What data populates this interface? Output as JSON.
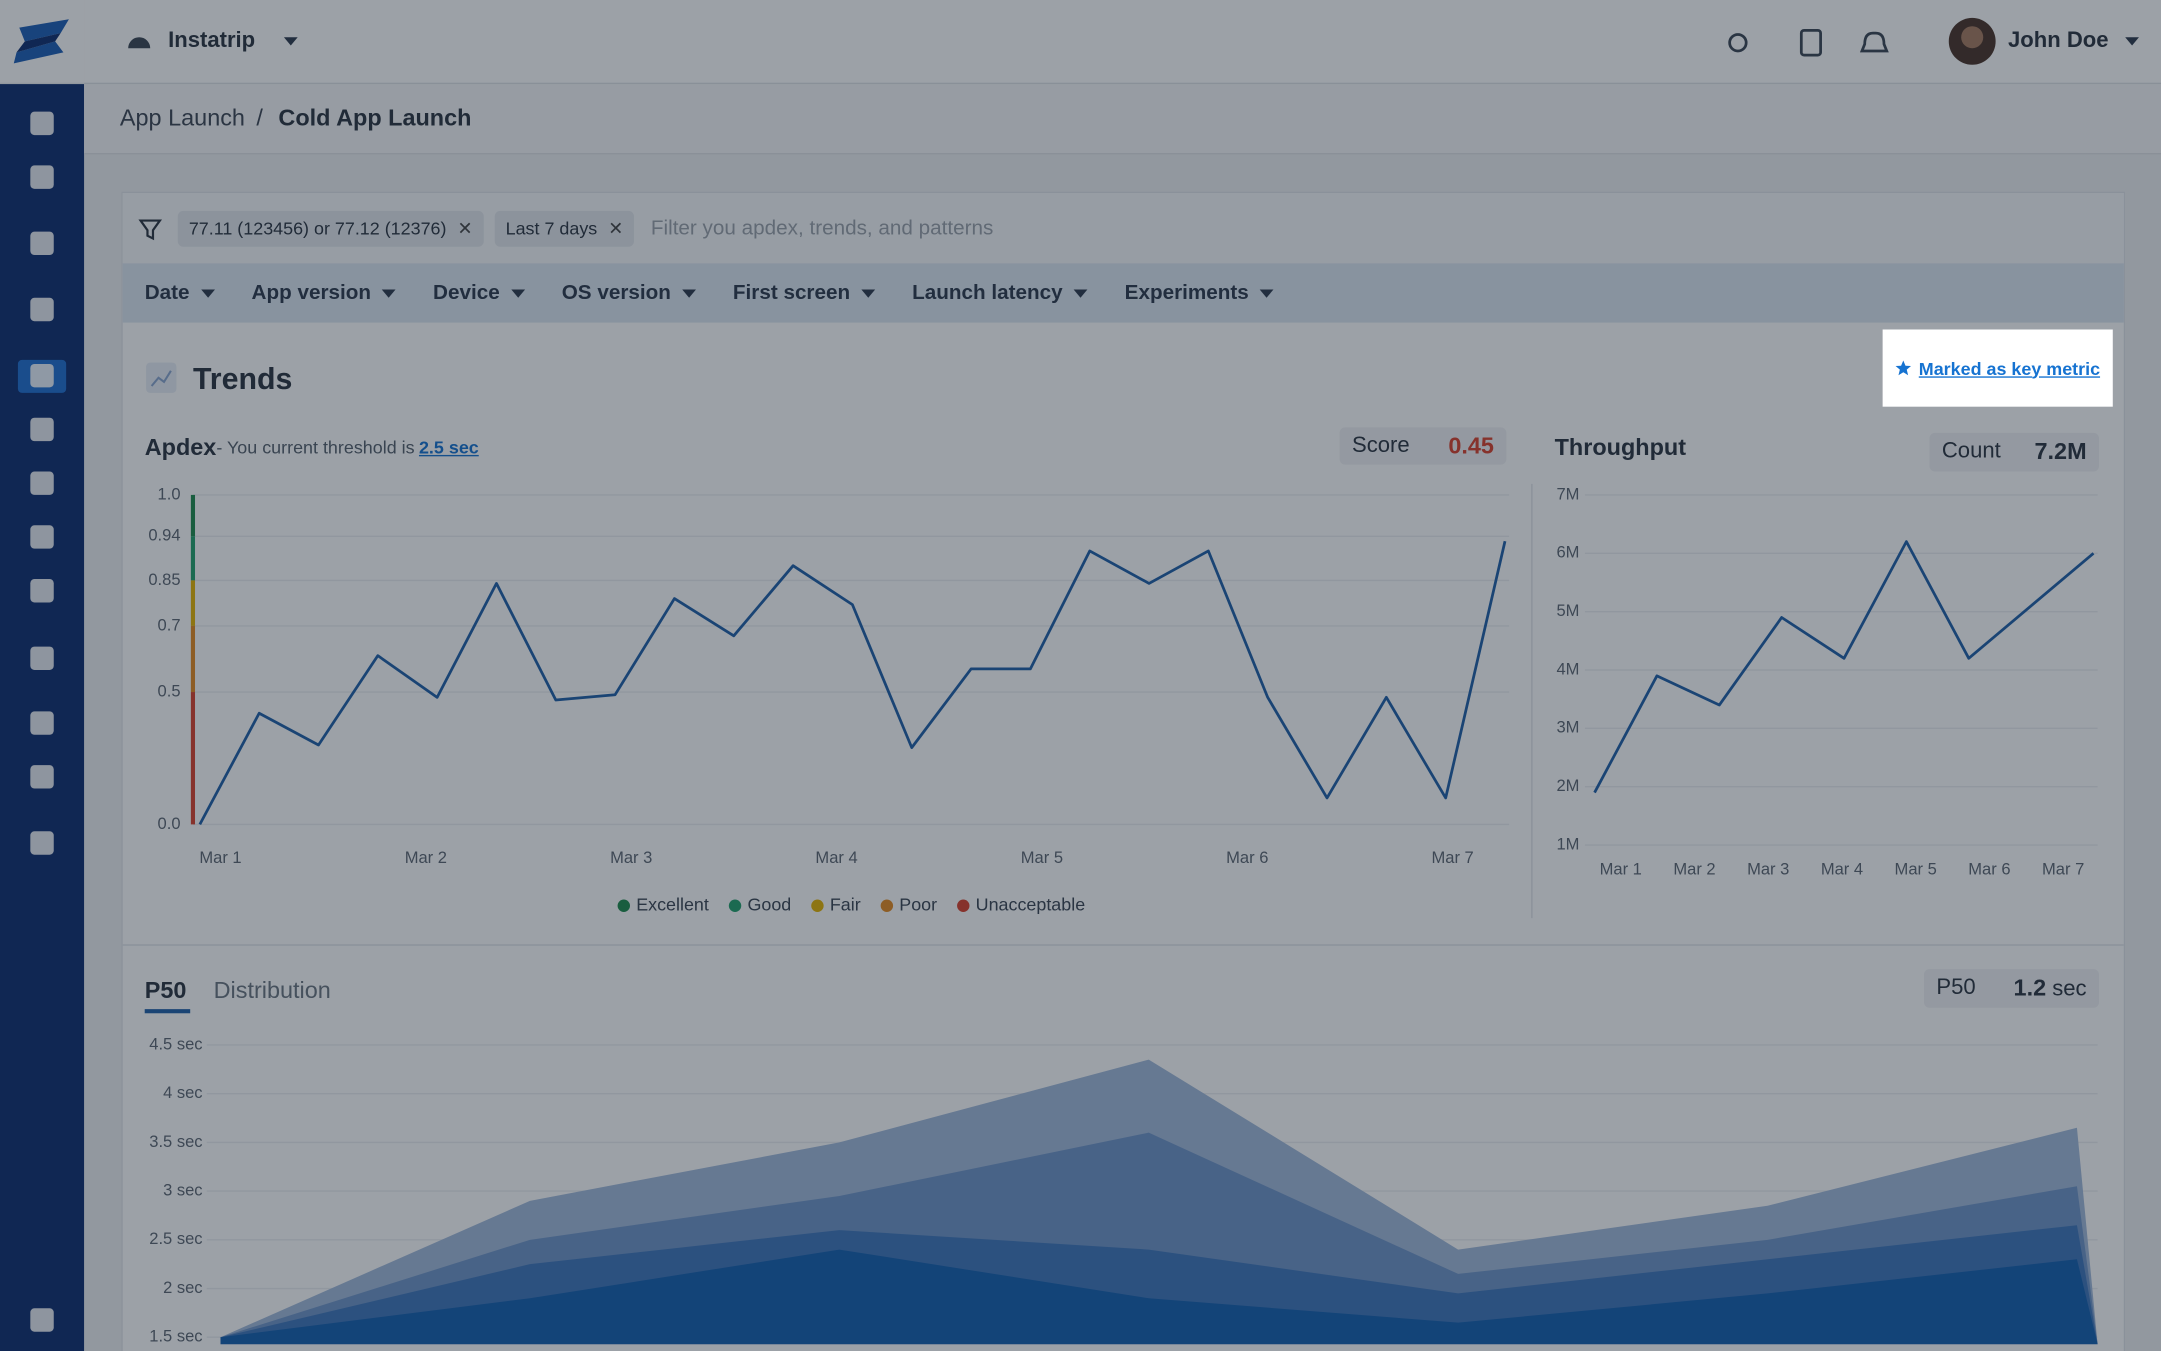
{
  "header": {
    "app_name": "Instatrip",
    "user_name": "John Doe"
  },
  "breadcrumb": {
    "parent": "App Launch",
    "separator": "/",
    "current": "Cold App Launch"
  },
  "filters": {
    "chips": [
      "77.11 (123456) or 77.12 (12376)",
      "Last 7 days"
    ],
    "placeholder": "Filter you apdex, trends, and patterns"
  },
  "filter_menus": [
    "Date",
    "App version",
    "Device",
    "OS version",
    "First screen",
    "Launch latency",
    "Experiments"
  ],
  "trends": {
    "title": "Trends",
    "key_metric_button": "Marked as key metric"
  },
  "chart_data": [
    {
      "type": "line",
      "title": "Apdex",
      "subtitle": "- You current threshold is",
      "threshold_link": "2.5 sec",
      "stat_label": "Score",
      "stat_value": 0.45,
      "color": "#1f5fa8",
      "ylim": [
        0,
        1
      ],
      "yticks": [
        {
          "value": 1,
          "label": "1.0"
        },
        0.94,
        0.85,
        0.7,
        0.5,
        {
          "value": 0,
          "label": "0.0"
        }
      ],
      "x_labels": [
        "Mar 1",
        "Mar 2",
        "Mar 3",
        "Mar 4",
        "Mar 5",
        "Mar 6",
        "Mar 7"
      ],
      "values": [
        0.0,
        0.42,
        0.3,
        0.61,
        0.48,
        0.84,
        0.47,
        0.49,
        0.79,
        0.67,
        0.88,
        0.77,
        0.29,
        0.57,
        0.57,
        0.91,
        0.84,
        0.91,
        0.48,
        0.1,
        0.48,
        0.1,
        0.93
      ],
      "grid": true,
      "bands": [
        {
          "name": "Excellent",
          "color": "#1e8a4c"
        },
        {
          "name": "Good",
          "color": "#22a06b"
        },
        {
          "name": "Fair",
          "color": "#e5b300"
        },
        {
          "name": "Poor",
          "color": "#e58a1f"
        },
        {
          "name": "Unacceptable",
          "color": "#d9402b"
        }
      ]
    },
    {
      "type": "line",
      "title": "Throughput",
      "stat_label": "Count",
      "stat_value": "7.2M",
      "color": "#1f5fa8",
      "ylim": [
        1000000,
        7000000
      ],
      "yticks": [
        {
          "value": 1000000,
          "label": "1M"
        },
        {
          "value": 2000000,
          "label": "2M"
        },
        {
          "value": 3000000,
          "label": "3M"
        },
        {
          "value": 4000000,
          "label": "4M"
        },
        {
          "value": 5000000,
          "label": "5M"
        },
        {
          "value": 6000000,
          "label": "6M"
        },
        {
          "value": 7000000,
          "label": "7M"
        }
      ],
      "x_labels": [
        "Mar 1",
        "Mar 2",
        "Mar 3",
        "Mar 4",
        "Mar 5",
        "Mar 6",
        "Mar 7"
      ],
      "values": [
        1900000,
        3900000,
        3400000,
        4900000,
        4200000,
        6200000,
        4200000,
        5100000,
        6000000
      ],
      "grid": true
    },
    {
      "type": "area",
      "tabs": [
        "P50",
        "Distribution"
      ],
      "stat_label": "P50",
      "stat_value": 1.2,
      "stat_unit": "sec",
      "ylim": [
        1.5,
        4.5
      ],
      "yticks": [
        {
          "value": 4.5,
          "label": "4.5 sec"
        },
        {
          "value": 4,
          "label": "4 sec"
        },
        {
          "value": 3.5,
          "label": "3.5 sec"
        },
        {
          "value": 3,
          "label": "3 sec"
        },
        {
          "value": 2.5,
          "label": "2.5 sec"
        },
        {
          "value": 2,
          "label": "2 sec"
        },
        {
          "value": 1.5,
          "label": "1.5 sec"
        }
      ],
      "grid": true,
      "series": [
        {
          "color": "#a3badb",
          "values": [
            1.5,
            2.9,
            3.5,
            4.35,
            2.4,
            2.85,
            3.65
          ]
        },
        {
          "color": "#6f95c8",
          "values": [
            1.5,
            2.5,
            2.95,
            3.6,
            2.15,
            2.5,
            3.05
          ]
        },
        {
          "color": "#3f76bb",
          "values": [
            1.5,
            2.25,
            2.6,
            2.4,
            1.95,
            2.3,
            2.65
          ]
        },
        {
          "color": "#145fae",
          "values": [
            1.5,
            1.9,
            2.4,
            1.9,
            1.65,
            1.95,
            2.3
          ]
        }
      ]
    }
  ]
}
